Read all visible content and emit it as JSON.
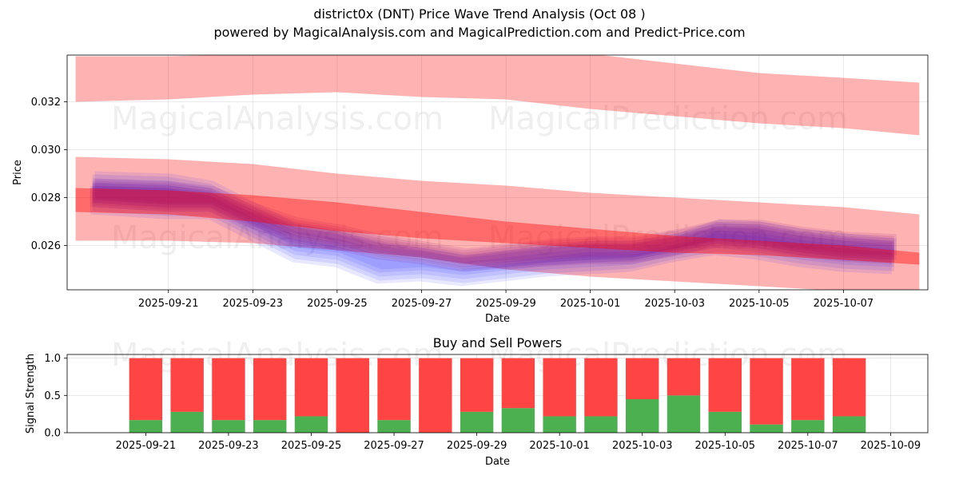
{
  "title_line1": "district0x (DNT) Price Wave Trend Analysis (Oct 08 )",
  "title_line2": "powered by MagicalAnalysis.com and MagicalPrediction.com and Predict-Price.com",
  "watermarks": [
    "MagicalAnalysis.com",
    "MagicalPrediction.com"
  ],
  "colors": {
    "red_band": "#ff0000",
    "blue_wave": "#0000ff",
    "purple_wave": "#800080",
    "buy": "#4caf50",
    "sell": "#ff4444"
  },
  "chart_data": [
    {
      "type": "area",
      "title": "",
      "xlabel": "Date",
      "ylabel": "Price",
      "xlim": [
        "2025-09-18.6",
        "2025-10-09.0"
      ],
      "ylim": [
        0.02415,
        0.03395
      ],
      "grid": true,
      "x_ticks": [
        "2025-09-21",
        "2025-09-23",
        "2025-09-25",
        "2025-09-27",
        "2025-09-29",
        "2025-10-01",
        "2025-10-03",
        "2025-10-05",
        "2025-10-07"
      ],
      "y_ticks": [
        "0.026",
        "0.028",
        "0.030",
        "0.032"
      ],
      "x": [
        "2025-09-18.8",
        "2025-09-21",
        "2025-09-23",
        "2025-09-25",
        "2025-09-27",
        "2025-09-29",
        "2025-10-01",
        "2025-10-03",
        "2025-10-05",
        "2025-10-07",
        "2025-10-08.8"
      ],
      "series": [
        {
          "name": "upper band",
          "kind": "band",
          "lower": [
            0.032,
            0.0321,
            0.0323,
            0.0324,
            0.0322,
            0.0321,
            0.0317,
            0.0314,
            0.0311,
            0.0309,
            0.0306
          ],
          "upper": [
            0.0339,
            0.0339,
            0.034,
            0.0341,
            0.0341,
            0.0341,
            0.034,
            0.0336,
            0.0332,
            0.033,
            0.0328
          ]
        },
        {
          "name": "middle band",
          "kind": "band",
          "lower": [
            0.0262,
            0.0262,
            0.0261,
            0.0258,
            0.0255,
            0.025,
            0.0247,
            0.0245,
            0.0243,
            0.0241,
            0.0239
          ],
          "upper": [
            0.0297,
            0.0296,
            0.0294,
            0.029,
            0.0287,
            0.0285,
            0.0282,
            0.028,
            0.0278,
            0.0276,
            0.0273
          ]
        },
        {
          "name": "trend band",
          "kind": "band",
          "lower": [
            0.0274,
            0.0273,
            0.027,
            0.0266,
            0.0263,
            0.0261,
            0.0259,
            0.0257,
            0.0256,
            0.0254,
            0.0252
          ],
          "upper": [
            0.0284,
            0.0283,
            0.0281,
            0.0278,
            0.0274,
            0.027,
            0.0267,
            0.0264,
            0.0262,
            0.026,
            0.0257
          ]
        },
        {
          "name": "blue wave",
          "kind": "wave",
          "x": [
            "2025-09-19.2",
            "2025-09-21",
            "2025-09-22",
            "2025-09-23",
            "2025-09-24",
            "2025-09-25",
            "2025-09-26",
            "2025-09-27",
            "2025-09-28",
            "2025-09-29",
            "2025-09-30",
            "2025-10-01",
            "2025-10-02",
            "2025-10-03",
            "2025-10-04",
            "2025-10-05",
            "2025-10-06",
            "2025-10-07",
            "2025-10-08.2"
          ],
          "lower": [
            0.0276,
            0.0274,
            0.0274,
            0.0265,
            0.0256,
            0.0254,
            0.0247,
            0.0248,
            0.0246,
            0.0248,
            0.025,
            0.0251,
            0.0252,
            0.0256,
            0.0259,
            0.0257,
            0.0254,
            0.0252,
            0.0251
          ],
          "upper": [
            0.0288,
            0.0287,
            0.0284,
            0.0275,
            0.0266,
            0.0263,
            0.0258,
            0.0256,
            0.0253,
            0.0255,
            0.0257,
            0.0259,
            0.0259,
            0.0262,
            0.0268,
            0.0267,
            0.0264,
            0.0262,
            0.026
          ]
        },
        {
          "name": "purple wave",
          "kind": "wave",
          "x": [
            "2025-09-19.2",
            "2025-09-21",
            "2025-09-22",
            "2025-09-23",
            "2025-09-24",
            "2025-09-25",
            "2025-09-26",
            "2025-09-27",
            "2025-09-28",
            "2025-09-29",
            "2025-09-30",
            "2025-10-01",
            "2025-10-02",
            "2025-10-03",
            "2025-10-04",
            "2025-10-05",
            "2025-10-06",
            "2025-10-07",
            "2025-10-08.2"
          ],
          "lower": [
            0.0278,
            0.0276,
            0.0276,
            0.0269,
            0.0263,
            0.026,
            0.0256,
            0.0254,
            0.0251,
            0.0252,
            0.0253,
            0.0254,
            0.0254,
            0.0257,
            0.0261,
            0.026,
            0.0257,
            0.0255,
            0.0254
          ],
          "upper": [
            0.0286,
            0.0285,
            0.0283,
            0.0276,
            0.027,
            0.0267,
            0.0263,
            0.026,
            0.0257,
            0.0259,
            0.0261,
            0.0262,
            0.0262,
            0.0265,
            0.0269,
            0.0269,
            0.0266,
            0.0264,
            0.0263
          ]
        }
      ]
    },
    {
      "type": "bar",
      "title": "Buy and Sell Powers",
      "xlabel": "Date",
      "ylabel": "Signal Strength",
      "ylim": [
        0,
        1.05
      ],
      "grid": true,
      "y_ticks": [
        "0.0",
        "0.5",
        "1.0"
      ],
      "x_ticks": [
        "2025-09-21",
        "2025-09-23",
        "2025-09-25",
        "2025-09-27",
        "2025-09-29",
        "2025-10-01",
        "2025-10-03",
        "2025-10-05",
        "2025-10-07",
        "2025-10-09"
      ],
      "categories": [
        "2025-09-21",
        "2025-09-22",
        "2025-09-23",
        "2025-09-24",
        "2025-09-25",
        "2025-09-26",
        "2025-09-27",
        "2025-09-28",
        "2025-09-29",
        "2025-09-30",
        "2025-10-01",
        "2025-10-02",
        "2025-10-03",
        "2025-10-04",
        "2025-10-05",
        "2025-10-06",
        "2025-10-07",
        "2025-10-08"
      ],
      "series": [
        {
          "name": "Buy",
          "values": [
            0.17,
            0.28,
            0.17,
            0.17,
            0.22,
            0.0,
            0.17,
            0.0,
            0.28,
            0.33,
            0.22,
            0.22,
            0.45,
            0.5,
            0.28,
            0.11,
            0.17,
            0.22
          ]
        },
        {
          "name": "Sell",
          "values": [
            0.83,
            0.72,
            0.83,
            0.83,
            0.78,
            1.0,
            0.83,
            1.0,
            0.72,
            0.67,
            0.78,
            0.78,
            0.55,
            0.5,
            0.72,
            0.89,
            0.83,
            0.78
          ]
        }
      ]
    }
  ]
}
